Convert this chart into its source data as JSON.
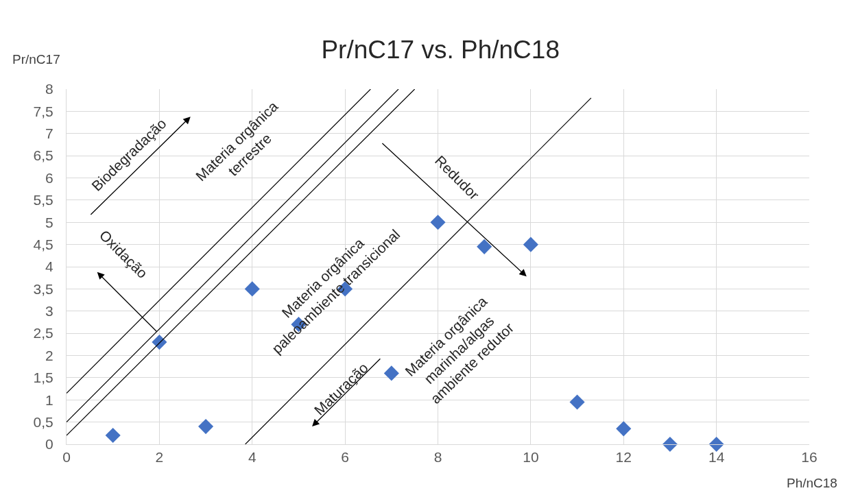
{
  "chart_data": {
    "type": "scatter",
    "title": "Pr/nC17 vs. Ph/nC18",
    "xlabel": "Ph/nC18",
    "ylabel": "Pr/nC17",
    "xlim": [
      0,
      16
    ],
    "xticks": [
      0,
      2,
      4,
      6,
      8,
      10,
      12,
      14,
      16
    ],
    "ylim": [
      0,
      8
    ],
    "yticks": [
      0,
      {
        "value": 0.5,
        "label": "0,5"
      },
      1,
      {
        "value": 1.5,
        "label": "1,5"
      },
      2,
      {
        "value": 2.5,
        "label": "2,5"
      },
      3,
      {
        "value": 3.5,
        "label": "3,5"
      },
      4,
      {
        "value": 4.5,
        "label": "4,5"
      },
      5,
      {
        "value": 5.5,
        "label": "5,5"
      },
      6,
      {
        "value": 6.5,
        "label": "6,5"
      },
      7,
      {
        "value": 7.5,
        "label": "7,5"
      },
      8
    ],
    "grid": true,
    "series": [
      {
        "marker": "diamond",
        "color": "#4472c4",
        "x": [
          1,
          2,
          3,
          4,
          5,
          6,
          7,
          8,
          9,
          10,
          11,
          12,
          13,
          14
        ],
        "values": [
          0.2,
          2.3,
          0.4,
          3.5,
          2.7,
          3.5,
          1.6,
          5.0,
          4.45,
          4.5,
          0.95,
          0.35,
          0,
          0
        ]
      },
      {
        "type": "line",
        "color": "#000000",
        "x": [
          0,
          6.55
        ],
        "values": [
          1.15,
          8
        ]
      },
      {
        "type": "line",
        "color": "#000000",
        "x": [
          0,
          7.15
        ],
        "values": [
          0.5,
          8
        ]
      },
      {
        "type": "line",
        "color": "#000000",
        "x": [
          0,
          7.5
        ],
        "values": [
          0.2,
          8
        ]
      },
      {
        "type": "line",
        "color": "#000000",
        "x": [
          3.85,
          11.3
        ],
        "values": [
          0,
          7.8
        ]
      }
    ],
    "annotations": [
      "Biodegradação",
      "Materia orgânica\nterrestre",
      "Oxidação",
      "Materia orgânica\npaleoambiente transicional",
      "Redudor",
      "Maturação",
      "Materia orgânica\nmarinha/algas\nambiente redutor"
    ]
  }
}
